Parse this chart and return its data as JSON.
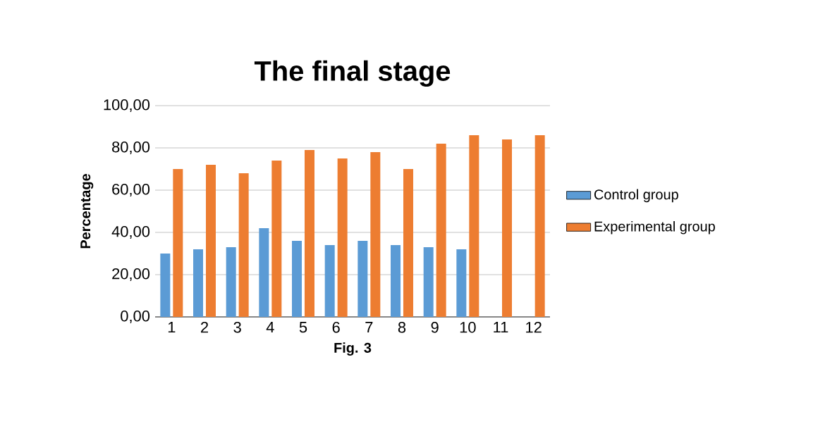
{
  "chart_data": {
    "type": "bar",
    "title": "The final stage",
    "xlabel": "Fig. 3",
    "ylabel": "Percentage",
    "categories": [
      "1",
      "2",
      "3",
      "4",
      "5",
      "6",
      "7",
      "8",
      "9",
      "10",
      "11",
      "12"
    ],
    "series": [
      {
        "name": "Control group",
        "color": "#5b9bd5",
        "values": [
          30,
          32,
          33,
          42,
          36,
          34,
          36,
          34,
          33,
          32,
          null,
          null
        ]
      },
      {
        "name": "Experimental group",
        "color": "#ed7d31",
        "values": [
          70,
          72,
          68,
          74,
          79,
          75,
          78,
          70,
          82,
          86,
          84,
          86
        ]
      }
    ],
    "ylim": [
      0,
      100
    ],
    "yticks": [
      {
        "value": 0,
        "label": "0,00"
      },
      {
        "value": 20,
        "label": "20,00"
      },
      {
        "value": 40,
        "label": "40,00"
      },
      {
        "value": 60,
        "label": "60,00"
      },
      {
        "value": 80,
        "label": "80,00"
      },
      {
        "value": 100,
        "label": "100,00"
      }
    ],
    "grid": "y",
    "legend": "right"
  }
}
